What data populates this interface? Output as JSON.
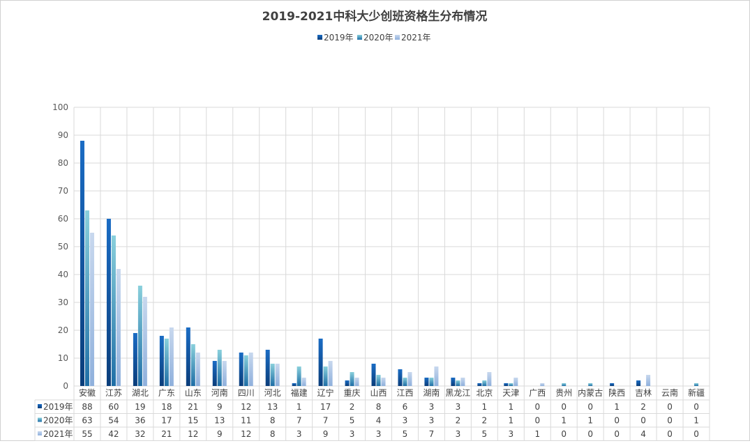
{
  "chart_data": {
    "type": "bar",
    "title": "2019-2021中科大少创班资格生分布情况",
    "ylim": [
      0,
      100
    ],
    "yticks": [
      0,
      10,
      20,
      30,
      40,
      50,
      60,
      70,
      80,
      90,
      100
    ],
    "grid": true,
    "legend_position": "top-center",
    "data_table": true,
    "categories": [
      "安徽",
      "江苏",
      "湖北",
      "广东",
      "山东",
      "河南",
      "四川",
      "河北",
      "福建",
      "辽宁",
      "重庆",
      "山西",
      "江西",
      "湖南",
      "黑龙江",
      "北京",
      "天津",
      "广西",
      "贵州",
      "内蒙古",
      "陕西",
      "吉林",
      "云南",
      "新疆"
    ],
    "series": [
      {
        "name": "2019年",
        "color_top": "#1a6cc4",
        "color_bottom": "#0a3d7a",
        "values": [
          88,
          60,
          19,
          18,
          21,
          9,
          12,
          13,
          1,
          17,
          2,
          8,
          6,
          3,
          3,
          1,
          1,
          0,
          0,
          0,
          1,
          2,
          0,
          0
        ]
      },
      {
        "name": "2020年",
        "color_top": "#8ad0dc",
        "color_bottom": "#1e6ea6",
        "values": [
          63,
          54,
          36,
          17,
          15,
          13,
          11,
          8,
          7,
          7,
          5,
          4,
          3,
          3,
          2,
          2,
          1,
          0,
          1,
          1,
          0,
          0,
          0,
          1
        ]
      },
      {
        "name": "2021年",
        "color_top": "#c8d8ee",
        "color_bottom": "#8fb0dc",
        "values": [
          55,
          42,
          32,
          21,
          12,
          9,
          12,
          8,
          3,
          9,
          3,
          3,
          5,
          7,
          3,
          5,
          3,
          1,
          0,
          0,
          0,
          4,
          0,
          0
        ]
      }
    ]
  }
}
